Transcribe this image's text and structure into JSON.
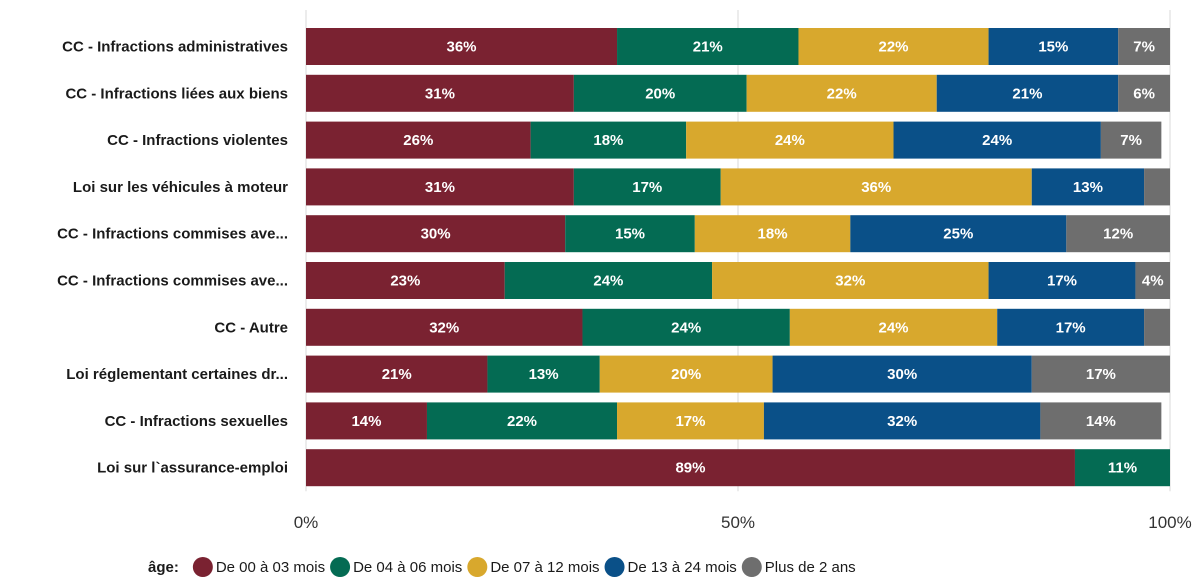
{
  "chart_data": {
    "type": "bar",
    "orientation": "horizontal",
    "stacked": true,
    "categories": [
      "CC - Infractions administratives",
      "CC - Infractions liées aux biens",
      "CC - Infractions violentes",
      "Loi sur les véhicules à moteur",
      "CC - Infractions commises ave...",
      "CC - Infractions commises ave...",
      "CC - Autre",
      "Loi réglementant certaines dr...",
      "CC - Infractions sexuelles",
      "Loi sur l`assurance-emploi"
    ],
    "series": [
      {
        "name": "De 00 à 03 mois",
        "color": "#7a2231",
        "values": [
          36,
          31,
          26,
          31,
          30,
          23,
          32,
          21,
          14,
          89
        ],
        "labels": [
          "36%",
          "31%",
          "26%",
          "31%",
          "30%",
          "23%",
          "32%",
          "21%",
          "14%",
          "89%"
        ]
      },
      {
        "name": "De 04 à 06 mois",
        "color": "#046b53",
        "values": [
          21,
          20,
          18,
          17,
          15,
          24,
          24,
          13,
          22,
          11
        ],
        "labels": [
          "21%",
          "20%",
          "18%",
          "17%",
          "15%",
          "24%",
          "24%",
          "13%",
          "22%",
          "11%"
        ]
      },
      {
        "name": "De 07 à 12 mois",
        "color": "#d8a82d",
        "values": [
          22,
          22,
          24,
          36,
          18,
          32,
          24,
          20,
          17,
          0
        ],
        "labels": [
          "22%",
          "22%",
          "24%",
          "36%",
          "18%",
          "32%",
          "24%",
          "20%",
          "17%",
          ""
        ]
      },
      {
        "name": "De 13 à 24 mois",
        "color": "#0a5088",
        "values": [
          15,
          21,
          24,
          13,
          25,
          17,
          17,
          30,
          32,
          0
        ],
        "labels": [
          "15%",
          "21%",
          "24%",
          "13%",
          "25%",
          "17%",
          "17%",
          "30%",
          "32%",
          ""
        ]
      },
      {
        "name": "Plus de 2 ans",
        "color": "#6e6e6e",
        "values": [
          7,
          6,
          7,
          3,
          12,
          4,
          3,
          17,
          14,
          0
        ],
        "labels": [
          "7%",
          "6%",
          "7%",
          "",
          "12%",
          "4%",
          "",
          "17%",
          "14%",
          ""
        ]
      }
    ],
    "xlim": [
      0,
      100
    ],
    "xticks": [
      {
        "value": 0,
        "label": "0%"
      },
      {
        "value": 50,
        "label": "50%"
      },
      {
        "value": 100,
        "label": "100%"
      }
    ],
    "grid": true,
    "legend": {
      "title": "âge:",
      "position": "bottom"
    }
  }
}
